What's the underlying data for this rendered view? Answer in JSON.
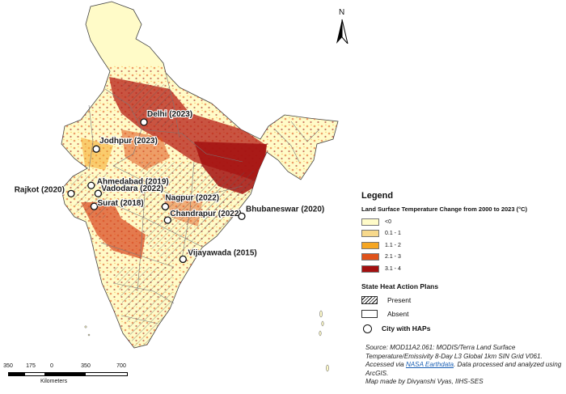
{
  "map": {
    "cities": [
      {
        "name": "Delhi (2023)",
        "x": 77.21,
        "y": 28.61
      },
      {
        "name": "Jodhpur (2023)",
        "x": 73.02,
        "y": 26.24
      },
      {
        "name": "Ahmedabad (2019)",
        "x": 72.57,
        "y": 23.02
      },
      {
        "name": "Rajkot (2020)",
        "x": 70.8,
        "y": 22.3
      },
      {
        "name": "Vadodara (2022)",
        "x": 73.18,
        "y": 22.31
      },
      {
        "name": "Surat (2018)",
        "x": 72.83,
        "y": 21.17
      },
      {
        "name": "Nagpur (2022)",
        "x": 79.09,
        "y": 21.15
      },
      {
        "name": "Chandrapur (2022)",
        "x": 79.3,
        "y": 19.96
      },
      {
        "name": "Bhubaneswar (2020)",
        "x": 85.82,
        "y": 20.3
      },
      {
        "name": "Vijayawada (2015)",
        "x": 80.65,
        "y": 16.51
      }
    ]
  },
  "north_arrow": {
    "label": "N"
  },
  "scale_bar": {
    "ticks": [
      "350",
      "175",
      "0",
      "350",
      "700"
    ],
    "unit": "Kilometers"
  },
  "legend": {
    "title": "Legend",
    "lst_title": "Land Surface Temperature Change from 2000 to 2023 (°C)",
    "lst_classes": [
      {
        "label": "<0",
        "color": "#fffbc8"
      },
      {
        "label": "0.1 - 1",
        "color": "#f7d98c"
      },
      {
        "label": "1.1 - 2",
        "color": "#f5a623"
      },
      {
        "label": "2.1 - 3",
        "color": "#e0521a"
      },
      {
        "label": "3.1 - 4",
        "color": "#a31010"
      }
    ],
    "hap_title": "State Heat Action Plans",
    "hap_present": "Present",
    "hap_absent": "Absent",
    "city_label": "City with HAPs"
  },
  "source": {
    "text1": "Source: MOD11A2.061: MODIS/Terra Land Surface Temperature/Emissivity 8-Day L3 Global 1km SIN Grid V061. Accessed via ",
    "link": "NASA Earthdata",
    "text2": ". Data processed and analyzed using ArcGIS.",
    "text3": "Map made by Divyanshi Vyas, IIHS-SES"
  }
}
